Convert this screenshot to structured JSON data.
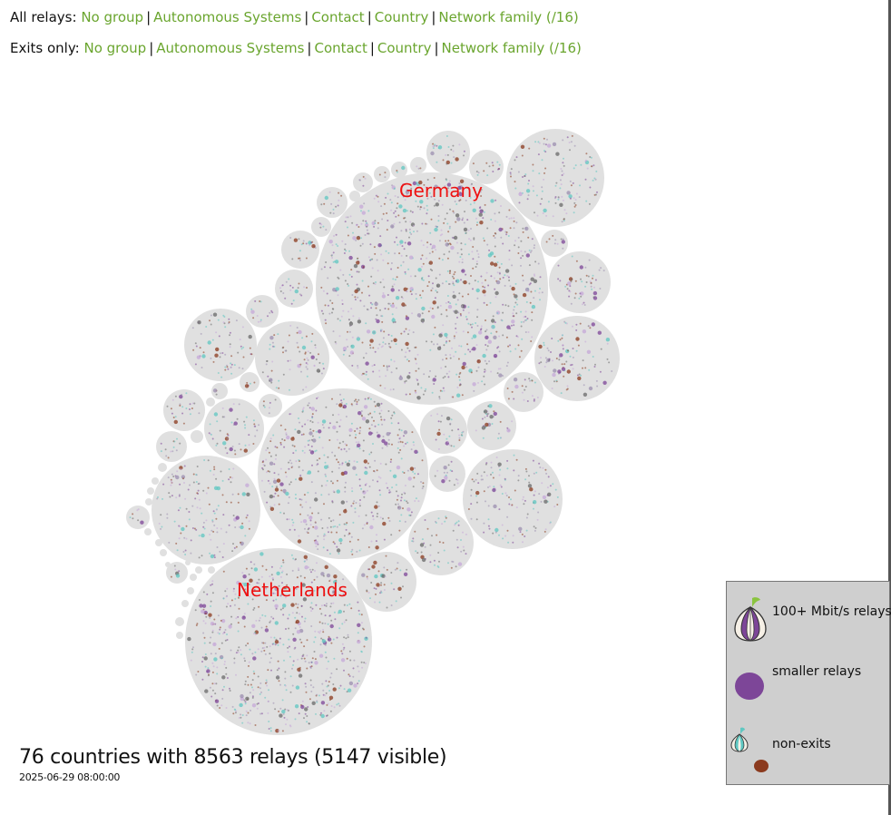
{
  "nav": {
    "all": {
      "lead": "All relays:",
      "links": [
        "No group",
        "Autonomous Systems",
        "Contact",
        "Country",
        "Network family (/16)"
      ]
    },
    "exits": {
      "lead": "Exits only:",
      "links": [
        "No group",
        "Autonomous Systems",
        "Contact",
        "Country",
        "Network family (/16)"
      ]
    }
  },
  "country_labels": {
    "germany": "Germany",
    "netherlands": "Netherlands"
  },
  "summary": "76 countries with 8563 relays (5147 visible)",
  "timestamp": "2025-06-29 08:00:00",
  "legend": {
    "fast": "100+ Mbit/s relays",
    "small": "smaller relays",
    "nonexit": "non-exits"
  },
  "colors": {
    "link": "#6aa52e",
    "country_label": "#ee1111",
    "bubble": "#e0e0e0",
    "relay_purple": "#7d4698",
    "relay_brown": "#8b3a1e",
    "onion_teal": "#5fc7c1",
    "legend_bg": "#cfcfcf"
  }
}
